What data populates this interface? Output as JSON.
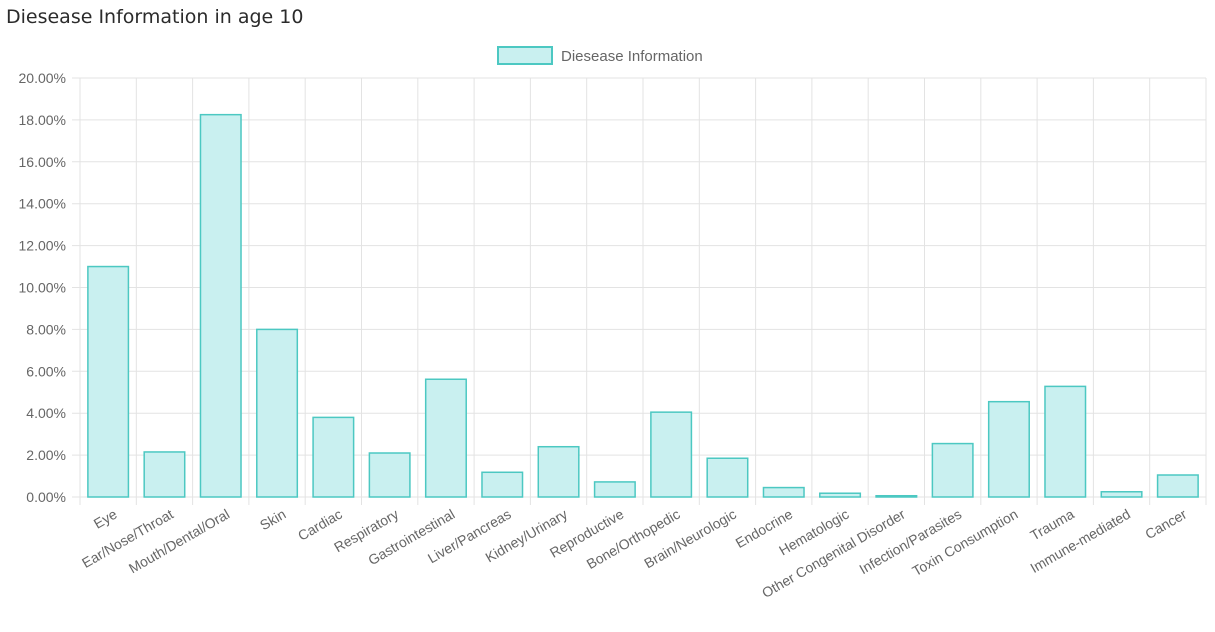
{
  "page": {
    "title": "Diesease Information in age 10"
  },
  "colors": {
    "bar_fill": "#c9f0f0",
    "bar_stroke": "#4cc8c2",
    "grid": "#e3e3e3",
    "text": "#666666"
  },
  "chart_data": {
    "type": "bar",
    "title": "Diesease Information in age 10",
    "legend": {
      "position": "top",
      "label": "Diesease Information"
    },
    "categories": [
      "Eye",
      "Ear/Nose/Throat",
      "Mouth/Dental/Oral",
      "Skin",
      "Cardiac",
      "Respiratory",
      "Gastrointestinal",
      "Liver/Pancreas",
      "Kidney/Urinary",
      "Reproductive",
      "Bone/Orthopedic",
      "Brain/Neurologic",
      "Endocrine",
      "Hematologic",
      "Other Congenital Disorder",
      "Infection/Parasites",
      "Toxin Consumption",
      "Trauma",
      "Immune-mediated",
      "Cancer"
    ],
    "series": [
      {
        "name": "Diesease Information",
        "values": [
          11.0,
          2.15,
          18.25,
          8.0,
          3.8,
          2.1,
          5.62,
          1.18,
          2.4,
          0.72,
          4.05,
          1.85,
          0.45,
          0.18,
          0.06,
          2.55,
          4.55,
          5.28,
          0.25,
          1.05
        ]
      }
    ],
    "ylim": [
      0,
      20
    ],
    "ytick_step": 2,
    "ytick_labels": [
      "0.00%",
      "2.00%",
      "4.00%",
      "6.00%",
      "8.00%",
      "10.00%",
      "12.00%",
      "14.00%",
      "16.00%",
      "18.00%",
      "20.00%"
    ],
    "grid": true
  }
}
